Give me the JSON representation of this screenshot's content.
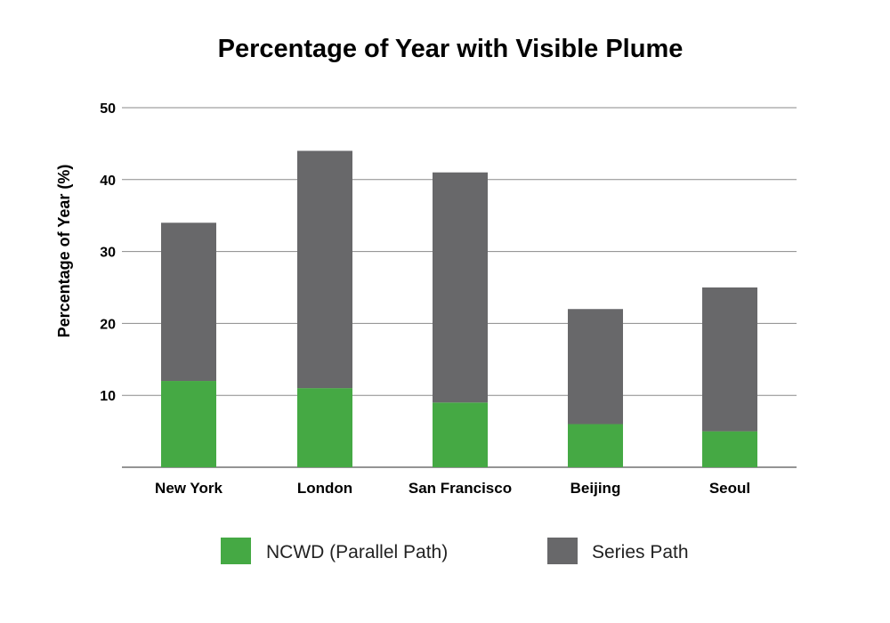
{
  "chart_data": {
    "type": "bar",
    "stacked": true,
    "title": "Percentage of Year with Visible Plume",
    "ylabel": "Percentage of Year (%)",
    "xlabel": "",
    "ylim": [
      0,
      50
    ],
    "yticks": [
      10,
      20,
      30,
      40,
      50
    ],
    "grid": true,
    "legend_position": "bottom",
    "categories": [
      "New York",
      "London",
      "San Francisco",
      "Beijing",
      "Seoul"
    ],
    "series": [
      {
        "name": "NCWD (Parallel Path)",
        "color": "#45a944",
        "values": [
          12,
          11,
          9,
          6,
          5
        ]
      },
      {
        "name": "Series Path",
        "color": "#68686a",
        "values": [
          22,
          33,
          32,
          16,
          20
        ]
      }
    ]
  }
}
